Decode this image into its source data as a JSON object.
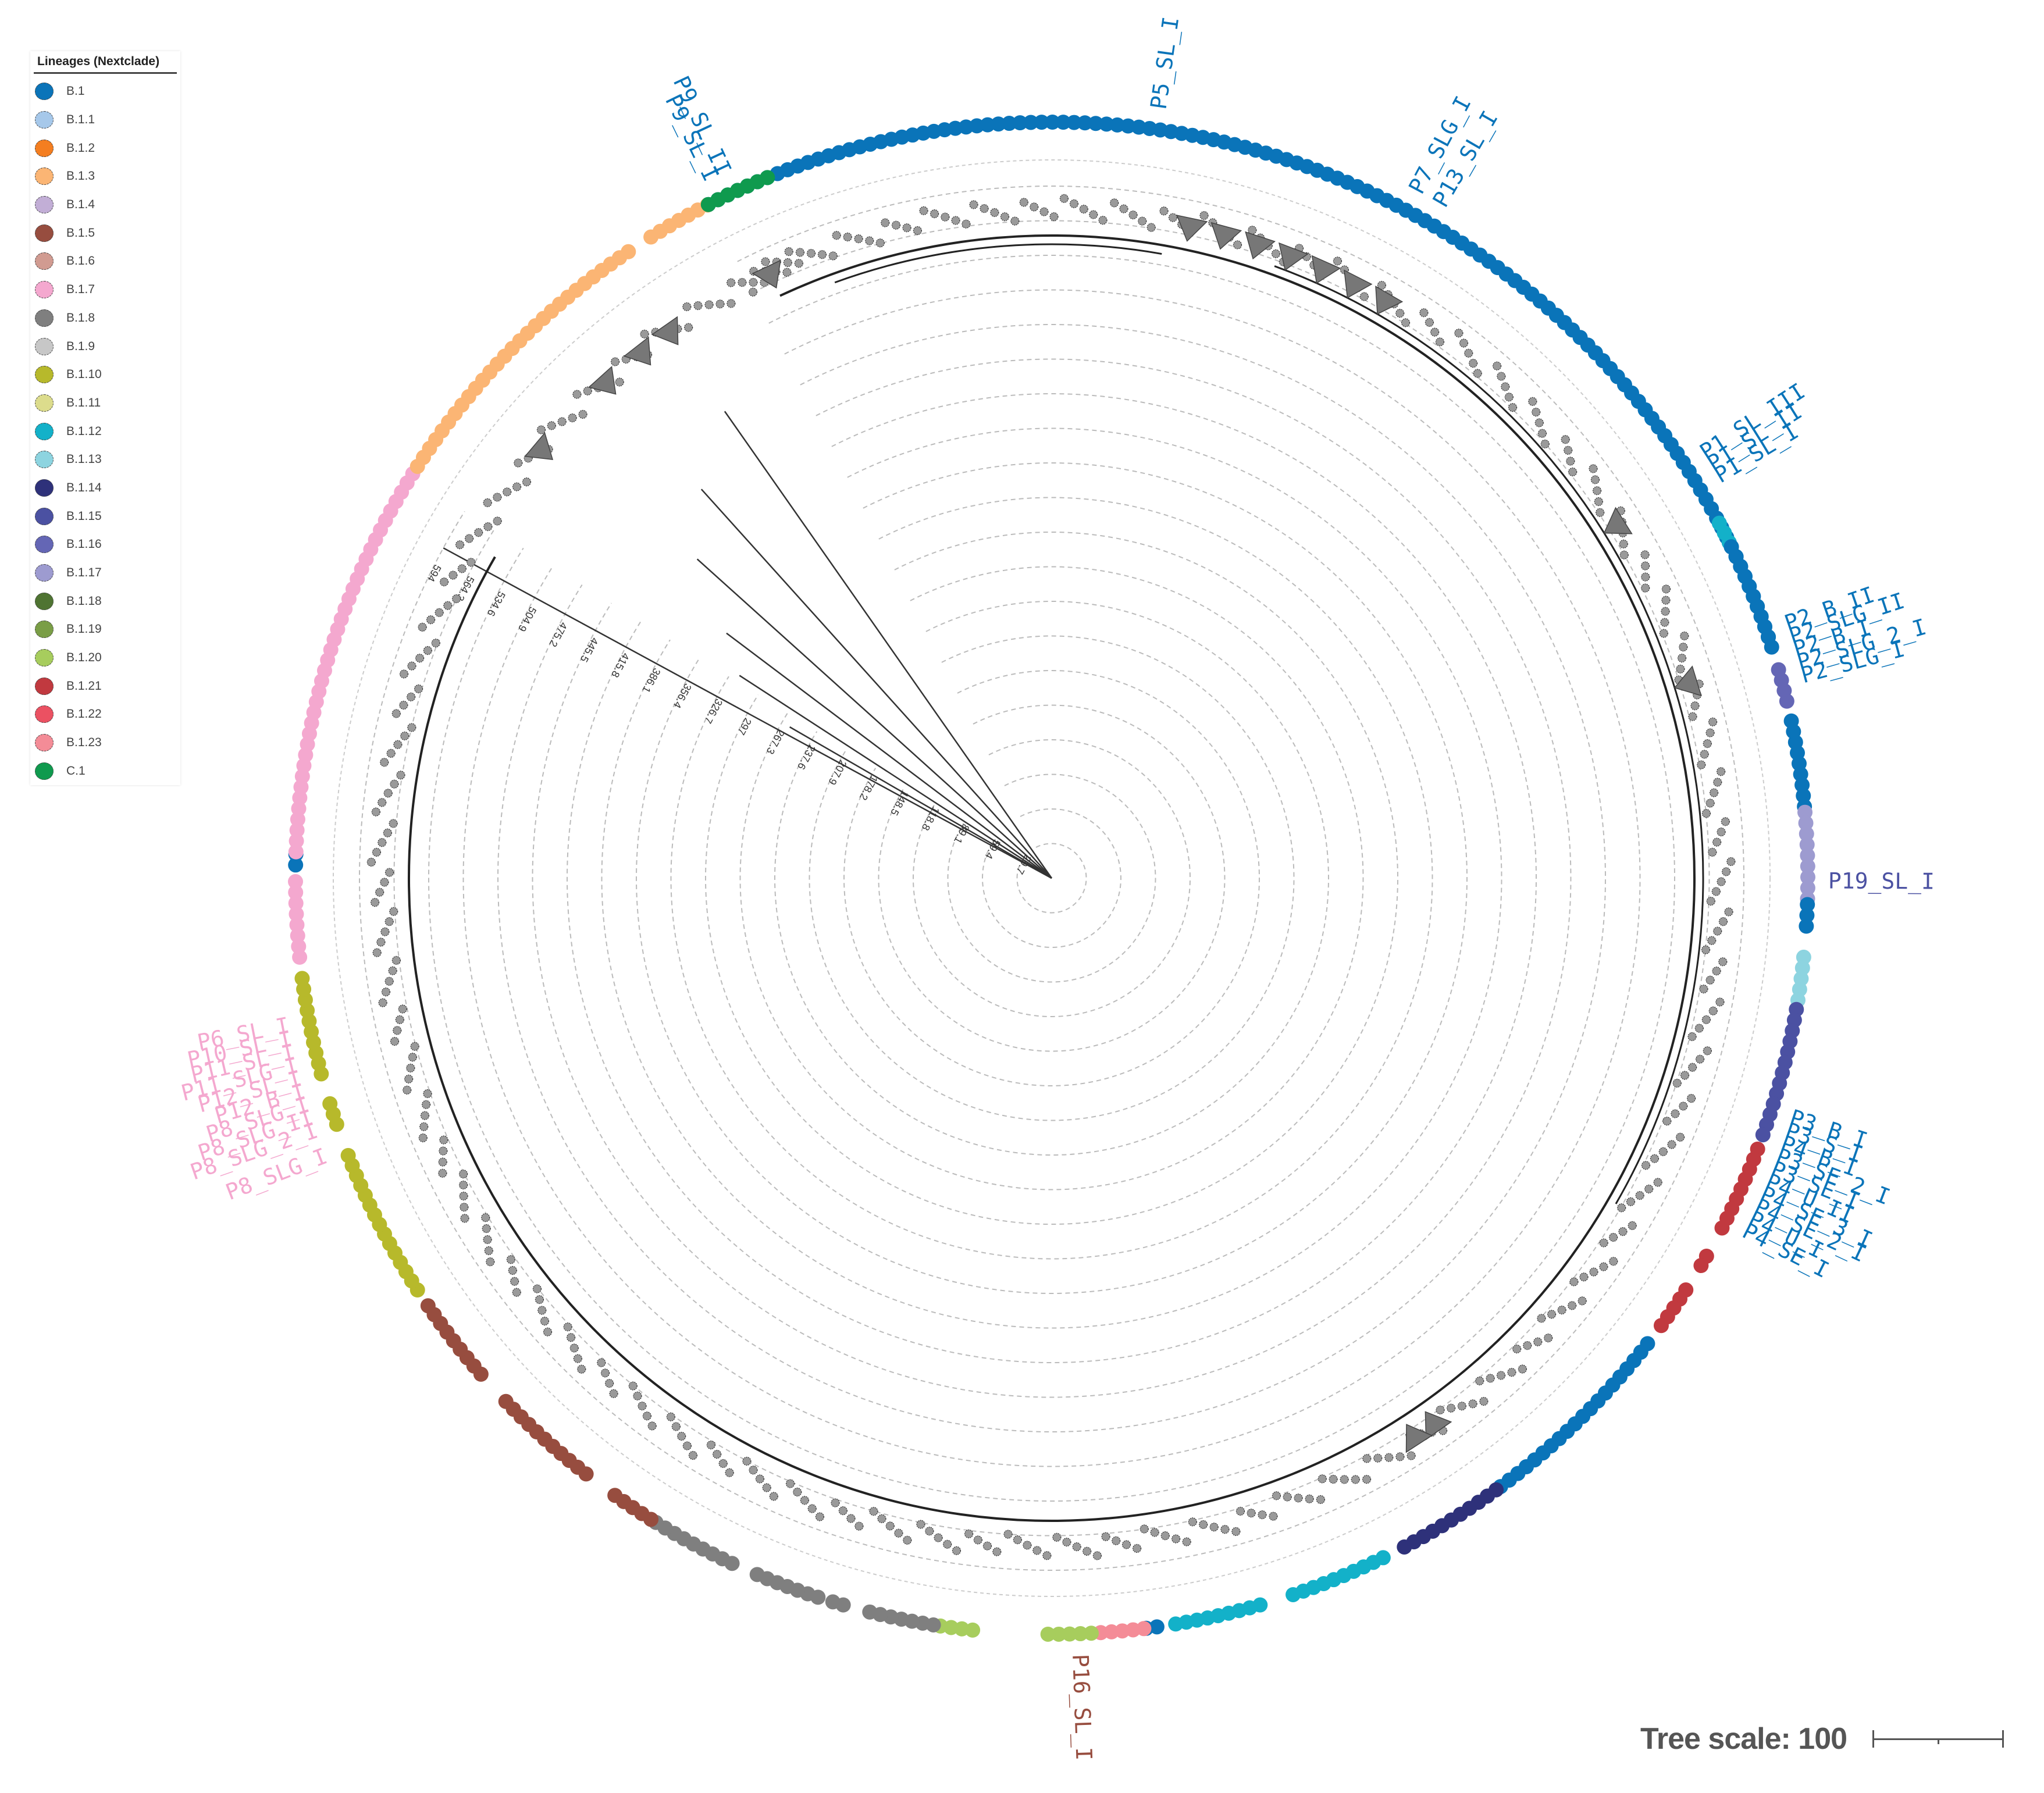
{
  "legend": {
    "title": "Lineages (Nextclade)",
    "items": [
      {
        "label": "B.1",
        "color": "#0a74b9"
      },
      {
        "label": "B.1.1",
        "color": "#a6c8ea"
      },
      {
        "label": "B.1.2",
        "color": "#f47e20"
      },
      {
        "label": "B.1.3",
        "color": "#fbb574"
      },
      {
        "label": "B.1.4",
        "color": "#c2aed6"
      },
      {
        "label": "B.1.5",
        "color": "#974d3f"
      },
      {
        "label": "B.1.6",
        "color": "#d19b91"
      },
      {
        "label": "B.1.7",
        "color": "#f4a8cf"
      },
      {
        "label": "B.1.8",
        "color": "#7f7f7f"
      },
      {
        "label": "B.1.9",
        "color": "#c7c7c7"
      },
      {
        "label": "B.1.10",
        "color": "#b7b92b"
      },
      {
        "label": "B.1.11",
        "color": "#dcdc8c"
      },
      {
        "label": "B.1.12",
        "color": "#13b1c9"
      },
      {
        "label": "B.1.13",
        "color": "#8dd4e0"
      },
      {
        "label": "B.1.14",
        "color": "#2e317a"
      },
      {
        "label": "B.1.15",
        "color": "#4b51a2"
      },
      {
        "label": "B.1.16",
        "color": "#6466b5"
      },
      {
        "label": "B.1.17",
        "color": "#9d9bd0"
      },
      {
        "label": "B.1.18",
        "color": "#4f7432"
      },
      {
        "label": "B.1.19",
        "color": "#7a9e46"
      },
      {
        "label": "B.1.20",
        "color": "#a7cd5d"
      },
      {
        "label": "B.1.21",
        "color": "#c1393f"
      },
      {
        "label": "B.1.22",
        "color": "#eb5162"
      },
      {
        "label": "B.1.23",
        "color": "#f48c97"
      },
      {
        "label": "C.1",
        "color": "#0f9a4e"
      }
    ]
  },
  "scale": {
    "label": "Tree scale: 100"
  },
  "chart_data": {
    "type": "circular-phylogenetic-tree",
    "title": "",
    "legend_title": "Lineages (Nextclade)",
    "radial_axis_ticks": [
      "29.7",
      "59.4",
      "89.1",
      "118.8",
      "148.5",
      "178.2",
      "207.9",
      "237.6",
      "267.3",
      "297",
      "326.7",
      "356.4",
      "386.1",
      "415.8",
      "445.5",
      "475.2",
      "504.9",
      "534.6",
      "564.3",
      "594"
    ],
    "tree_scale": 100,
    "lineage_arcs": [
      {
        "lineage": "B.1",
        "start": 333,
        "end": 432
      },
      {
        "lineage": "B.1.12",
        "start": 422,
        "end": 424
      },
      {
        "lineage": "B.1",
        "start": 424,
        "end": 433
      },
      {
        "lineage": "B.1.16",
        "start": 434,
        "end": 437
      },
      {
        "lineage": "B.1",
        "start": 438,
        "end": 445
      },
      {
        "lineage": "B.1.17",
        "start": 445,
        "end": 452
      },
      {
        "lineage": "B.1",
        "start": 452,
        "end": 454
      },
      {
        "lineage": "B.1.13",
        "start": 456,
        "end": 460
      },
      {
        "lineage": "B.1.15",
        "start": 460,
        "end": 470
      },
      {
        "lineage": "B.1.21",
        "start": 471,
        "end": 478
      },
      {
        "lineage": "B.1.21",
        "start": 480,
        "end": 481
      },
      {
        "lineage": "B.1.21",
        "start": 483,
        "end": 487
      },
      {
        "lineage": "B.1",
        "start": 488,
        "end": 504
      },
      {
        "lineage": "B.1.14",
        "start": 504,
        "end": 513
      },
      {
        "lineage": "B.1.12",
        "start": 514,
        "end": 522
      },
      {
        "lineage": "B.1.12",
        "start": 524,
        "end": 531
      },
      {
        "lineage": "B.1",
        "start": 532,
        "end": 533
      },
      {
        "lineage": "B.1.23",
        "start": 533,
        "end": 537
      },
      {
        "lineage": "B.1.20",
        "start": 537,
        "end": 541
      },
      {
        "lineage": "B.1.20",
        "start": 546,
        "end": 549
      },
      {
        "lineage": "B.1.8",
        "start": 549,
        "end": 554
      },
      {
        "lineage": "B.1.8",
        "start": 556,
        "end": 557
      },
      {
        "lineage": "B.1.8",
        "start": 558,
        "end": 563
      },
      {
        "lineage": "B.1.8",
        "start": 565,
        "end": 572
      },
      {
        "lineage": "B.1.5",
        "start": 572,
        "end": 576
      },
      {
        "lineage": "B.1.5",
        "start": 578,
        "end": 587
      },
      {
        "lineage": "B.1.5",
        "start": 589,
        "end": 596
      },
      {
        "lineage": "B.1.10",
        "start": 597,
        "end": 609
      },
      {
        "lineage": "B.1.10",
        "start": 611,
        "end": 613
      },
      {
        "lineage": "B.1.10",
        "start": 615,
        "end": 623
      },
      {
        "lineage": "B.1.7",
        "start": 624,
        "end": 630
      },
      {
        "lineage": "B.1",
        "start": 631,
        "end": 632
      },
      {
        "lineage": "B.1.7",
        "start": 632,
        "end": 663
      },
      {
        "lineage": "B.1.3",
        "start": 663,
        "end": 686
      },
      {
        "lineage": "B.1.3",
        "start": 688,
        "end": 693
      },
      {
        "lineage": "C.1",
        "start": 693,
        "end": 698
      }
    ],
    "leaf_labels": [
      {
        "text": "P9_SL_I",
        "angle": 334,
        "color": "#0a74b9"
      },
      {
        "text": "P9_SL_II",
        "angle": 335,
        "color": "#0a74b9"
      },
      {
        "text": "P5_SL_I",
        "angle": 8,
        "color": "#0a74b9"
      },
      {
        "text": "P7_SLG_I",
        "angle": 28,
        "color": "#0a74b9"
      },
      {
        "text": "P13_SL_I",
        "angle": 30,
        "color": "#0a74b9"
      },
      {
        "text": "P1_SL_III",
        "angle": 57,
        "color": "#0a74b9"
      },
      {
        "text": "P1_SL_II",
        "angle": 58,
        "color": "#0a74b9"
      },
      {
        "text": "P1_SL_I",
        "angle": 59,
        "color": "#0a74b9"
      },
      {
        "text": "P2_B_II",
        "angle": 71,
        "color": "#0a74b9"
      },
      {
        "text": "P2_SLG_II",
        "angle": 72,
        "color": "#0a74b9"
      },
      {
        "text": "P2_B_I",
        "angle": 73,
        "color": "#0a74b9"
      },
      {
        "text": "P2_SLG_2_I",
        "angle": 74,
        "color": "#0a74b9"
      },
      {
        "text": "P2_SLG_I",
        "angle": 75,
        "color": "#0a74b9"
      },
      {
        "text": "P19_SL_I",
        "angle": 90.3,
        "color": "#4b51a2"
      },
      {
        "text": "P3_B_I",
        "angle": 108,
        "color": "#0a74b9"
      },
      {
        "text": "P3_S_I",
        "angle": 109,
        "color": "#0a74b9"
      },
      {
        "text": "P4_B_I",
        "angle": 110,
        "color": "#0a74b9"
      },
      {
        "text": "P3_SE_2_I",
        "angle": 111,
        "color": "#0a74b9"
      },
      {
        "text": "P3_SE_I",
        "angle": 112,
        "color": "#0a74b9"
      },
      {
        "text": "P4_U_II",
        "angle": 113,
        "color": "#0a74b9"
      },
      {
        "text": "P4_SE_3_I",
        "angle": 114,
        "color": "#0a74b9"
      },
      {
        "text": "P4_SE_2_I",
        "angle": 115,
        "color": "#0a74b9"
      },
      {
        "text": "P4_U_I",
        "angle": 116,
        "color": "#0a74b9"
      },
      {
        "text": "P4_SE_I",
        "angle": 117,
        "color": "#0a74b9"
      },
      {
        "text": "P16_SL_I",
        "angle": 178,
        "color": "#974d3f"
      },
      {
        "text": "P6_SL_I",
        "angle": 259,
        "color": "#f4a8cf"
      },
      {
        "text": "P10_SL_I",
        "angle": 258,
        "color": "#f4a8cf"
      },
      {
        "text": "P11_SL_I",
        "angle": 257,
        "color": "#f4a8cf"
      },
      {
        "text": "P11_SLG_I",
        "angle": 256,
        "color": "#f4a8cf"
      },
      {
        "text": "P12_SL_I",
        "angle": 255,
        "color": "#f4a8cf"
      },
      {
        "text": "P12_B_I",
        "angle": 254,
        "color": "#f4a8cf"
      },
      {
        "text": "P8_SLG_I",
        "angle": 253,
        "color": "#f4a8cf"
      },
      {
        "text": "P8_SLG_II",
        "angle": 252,
        "color": "#f4a8cf"
      },
      {
        "text": "P8_SLG_2_I",
        "angle": 251,
        "color": "#f4a8cf"
      },
      {
        "text": "P8_SLG_I",
        "angle": 249,
        "color": "#f4a8cf"
      }
    ],
    "collapsed_clade_angles": [
      12,
      15,
      18,
      21,
      24,
      27,
      30,
      58,
      73,
      310,
      318,
      322,
      325,
      335,
      145,
      147
    ],
    "layout": {
      "center": [
        1808,
        1510
      ],
      "ring_radius": 1300,
      "tree_radius": 1190,
      "open_wedge_degrees": [
        302,
        333
      ]
    }
  }
}
